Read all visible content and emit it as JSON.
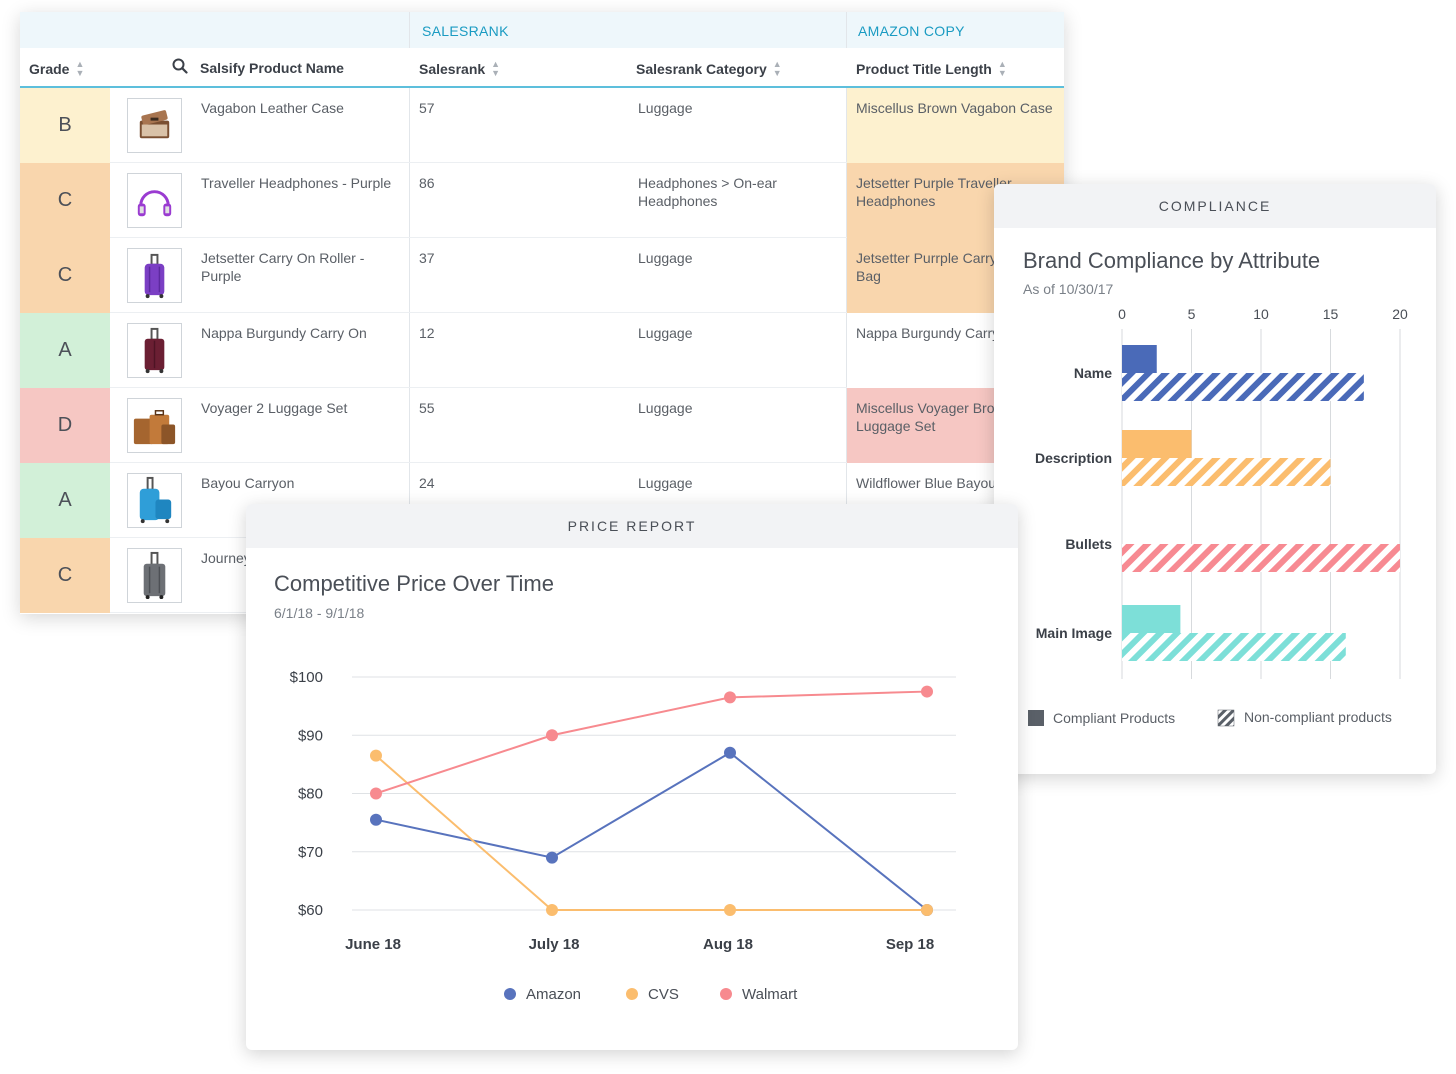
{
  "table": {
    "groups": {
      "salesrank": "SALESRANK",
      "amazon_copy": "AMAZON COPY"
    },
    "headers": {
      "grade": "Grade",
      "product_name": "Salsify Product Name",
      "salesrank": "Salesrank",
      "category": "Salesrank Category",
      "title_length": "Product Title Length"
    },
    "rows": [
      {
        "grade": "B",
        "grade_color": "#fdf1cf",
        "name": "Vagabon Leather Case",
        "rank": "57",
        "category": "Luggage",
        "copy": "Miscellus Brown Vagabon Case",
        "copy_color": "#fdf1cf",
        "icon": "suitcase-open-icon"
      },
      {
        "grade": "C",
        "grade_color": "#f9d6ad",
        "name": "Traveller Headphones - Purple",
        "rank": "86",
        "category": "Headphones > On-ear Headphones",
        "copy": "Jetsetter Purple Traveller Headphones",
        "copy_color": "#f9d6ad",
        "icon": "headphones-icon"
      },
      {
        "grade": "C",
        "grade_color": "#f9d6ad",
        "name": "Jetsetter Carry On Roller - Purple",
        "rank": "37",
        "category": "Luggage",
        "copy": "Jetsetter Purrple Carry Rolling Bag",
        "copy_color": "#f9d6ad",
        "icon": "purple-roller-icon"
      },
      {
        "grade": "A",
        "grade_color": "#d2f0d8",
        "name": "Nappa Burgundy Carry On",
        "rank": "12",
        "category": "Luggage",
        "copy": "Nappa Burgundy Carry",
        "copy_color": "#ffffff",
        "icon": "burgundy-roller-icon"
      },
      {
        "grade": "D",
        "grade_color": "#f6c7c3",
        "name": "Voyager 2 Luggage Set",
        "rank": "55",
        "category": "Luggage",
        "copy": "Miscellus Voyager Brown Luggage Set",
        "copy_color": "#f6c7c3",
        "icon": "luggage-set-icon"
      },
      {
        "grade": "A",
        "grade_color": "#d2f0d8",
        "name": "Bayou Carryon",
        "rank": "24",
        "category": "Luggage",
        "copy": "Wildflower Blue Bayou On",
        "copy_color": "#ffffff",
        "icon": "blue-roller-icon"
      },
      {
        "grade": "C",
        "grade_color": "#f9d6ad",
        "name": "Journey",
        "rank": "",
        "category": "",
        "copy": "",
        "copy_color": "#ffffff",
        "icon": "grey-roller-icon"
      }
    ]
  },
  "compliance": {
    "header": "COMPLIANCE",
    "title": "Brand Compliance by Attribute",
    "subtitle": "As of 10/30/17",
    "legend": {
      "compliant": "Compliant Products",
      "noncompliant": "Non-compliant products"
    },
    "chart_data": {
      "type": "bar",
      "orientation": "horizontal",
      "categories": [
        "Name",
        "Description",
        "Bullets",
        "Main Image"
      ],
      "series": [
        {
          "name": "Compliant Products",
          "values": [
            2.5,
            5,
            0,
            4.2
          ]
        },
        {
          "name": "Non-compliant products",
          "values": [
            17.4,
            15,
            20,
            16.1
          ]
        }
      ],
      "category_colors": [
        "#4a6ab8",
        "#fbbd6e",
        "#f78a92",
        "#7ddfd8"
      ],
      "xlim": [
        0,
        20
      ],
      "xticks": [
        "0",
        "5",
        "10",
        "15",
        "20"
      ],
      "grid": true,
      "legend_position": "bottom"
    }
  },
  "price": {
    "header": "PRICE REPORT",
    "title": "Competitive Price Over Time",
    "subtitle": "6/1/18 - 9/1/18",
    "chart_data": {
      "type": "line",
      "categories": [
        "June 18",
        "July 18",
        "Aug 18",
        "Sep 18"
      ],
      "series": [
        {
          "name": "Amazon",
          "color": "#5873bd",
          "values": [
            75.5,
            69,
            87,
            60
          ]
        },
        {
          "name": "CVS",
          "color": "#fbbd6e",
          "values": [
            86.5,
            60,
            60,
            60
          ]
        },
        {
          "name": "Walmart",
          "color": "#f78a8f",
          "values": [
            80,
            90,
            96.5,
            97.5
          ]
        }
      ],
      "ylim": [
        60,
        100
      ],
      "yticks": [
        "$100",
        "$90",
        "$80",
        "$70",
        "$60"
      ],
      "grid": true,
      "legend_position": "bottom"
    }
  }
}
